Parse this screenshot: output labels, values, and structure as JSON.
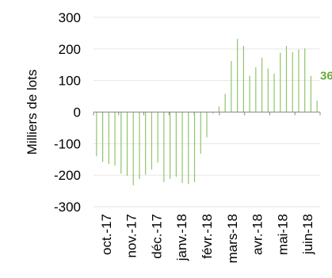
{
  "chart_data": {
    "type": "bar",
    "ylabel": "Milliers de lots",
    "ylim": [
      -300,
      300
    ],
    "yticks": [
      300,
      200,
      100,
      0,
      -100,
      -200,
      -300
    ],
    "grid": true,
    "bar_color": "#8fc56a",
    "gridline_color": "#e6e6e6",
    "axis_color": "#888888",
    "x_tick_labels": [
      "oct.-17",
      "nov.-17",
      "déc.-17",
      "janv.-18",
      "févr.-18",
      "mars-18",
      "avr.-18",
      "mai-18",
      "juin-18"
    ],
    "last_value_label": "36",
    "last_value_label_color": "#6aab3c",
    "series": [
      {
        "values": [
          -140,
          -158,
          -165,
          -170,
          -195,
          -202,
          -232,
          -212,
          -198,
          -182,
          -160,
          -222,
          -212,
          -205,
          -225,
          -228,
          -222,
          -132,
          -80,
          -5,
          18,
          58,
          162,
          232,
          210,
          115,
          142,
          172,
          138,
          122,
          188,
          210,
          190,
          198,
          202,
          115,
          36
        ]
      }
    ]
  }
}
